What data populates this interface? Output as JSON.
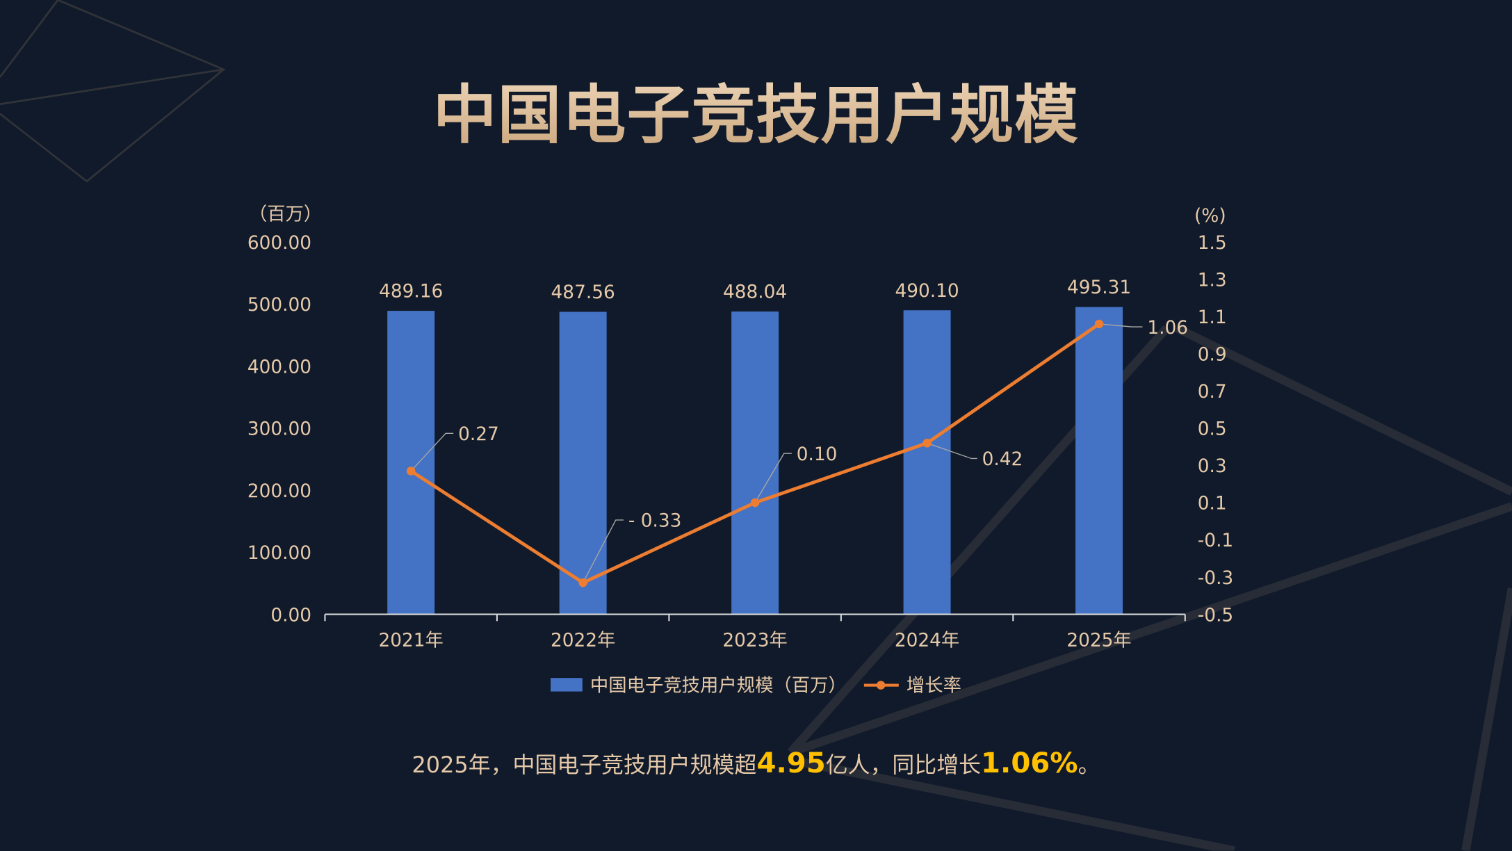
{
  "title": "中国电子竞技用户规模",
  "chart_data": {
    "type": "bar+line",
    "categories": [
      "2021年",
      "2022年",
      "2023年",
      "2024年",
      "2025年"
    ],
    "series": [
      {
        "name": "中国电子竞技用户规模（百万）",
        "type": "bar",
        "axis": "left",
        "values": [
          489.16,
          487.56,
          488.04,
          490.1,
          495.31
        ],
        "labels": [
          "489.16",
          "487.56",
          "488.04",
          "490.10",
          "495.31"
        ],
        "color": "#4472c4"
      },
      {
        "name": "增长率",
        "type": "line",
        "axis": "right",
        "values": [
          0.27,
          -0.33,
          0.1,
          0.42,
          1.06
        ],
        "labels": [
          "0.27",
          "- 0.33",
          "0.10",
          "0.42",
          "1.06"
        ],
        "color": "#ed7d31"
      }
    ],
    "left_axis": {
      "unit": "（百万）",
      "ylim": [
        0,
        600
      ],
      "ticks": [
        "0.00",
        "100.00",
        "200.00",
        "300.00",
        "400.00",
        "500.00",
        "600.00"
      ]
    },
    "right_axis": {
      "unit": "(%)",
      "ylim": [
        -0.5,
        1.5
      ],
      "ticks": [
        "-0.5",
        "-0.3",
        "-0.1",
        "0.1",
        "0.3",
        "0.5",
        "0.7",
        "0.9",
        "1.1",
        "1.3",
        "1.5"
      ]
    },
    "grid": false,
    "legend": "bottom"
  },
  "summary": {
    "pre": "2025年，中国电子竞技用户规模超",
    "v1": "4.95",
    "mid": "亿人，同比增长",
    "v2": "1.06%",
    "post": "。"
  },
  "colors": {
    "background": "#101a2b",
    "text": "#e6c9a8",
    "highlight": "#ffc000"
  }
}
